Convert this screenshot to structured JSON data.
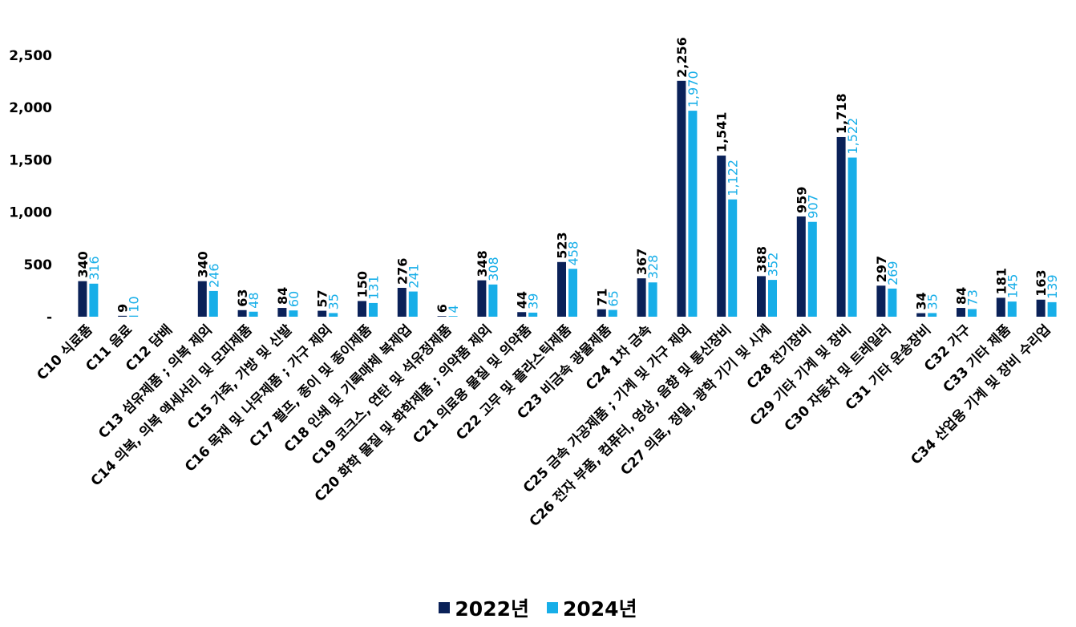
{
  "chart_data": {
    "type": "bar",
    "ylim": [
      0,
      2500
    ],
    "yticks": [
      {
        "value": 0,
        "label": "-"
      },
      {
        "value": 500,
        "label": "500"
      },
      {
        "value": 1000,
        "label": "1,000"
      },
      {
        "value": 1500,
        "label": "1,500"
      },
      {
        "value": 2000,
        "label": "2,000"
      },
      {
        "value": 2500,
        "label": "2,500"
      }
    ],
    "categories": [
      "C10 식료품",
      "C11 음료",
      "C12 담배",
      "C13 섬유제품 ; 의복 제외",
      "C14 의복, 의복 액세서리 및 모피제품",
      "C15 가죽, 가방 및 신발",
      "C16 목재 및 나무제품 ; 가구 제외",
      "C17 펄프, 종이 및 종이제품",
      "C18 인쇄 및 기록매체 복제업",
      "C19 코크스, 연탄 및 석유정제품",
      "C20 화학 물질 및 화학제품 ; 의약품 제외",
      "C21 의료용 물질 및 의약품",
      "C22 고무 및 플라스틱제품",
      "C23 비금속 광물제품",
      "C24 1차 금속",
      "C25 금속 가공제품 ; 기계 및 가구 제외",
      "C26 전자 부품, 컴퓨터, 영상, 음향 및 통신장비",
      "C27 의료, 정밀, 광학 기기 및 시계",
      "C28 전기장비",
      "C29 기타 기계 및 장비",
      "C30 자동차 및 트레일러",
      "C31 기타 운송장비",
      "C32 가구",
      "C33 기타 제품",
      "C34 산업용 기계 및 장비 수리업"
    ],
    "series": [
      {
        "name": "2022년",
        "color": "#0a2158",
        "values": [
          340,
          9,
          null,
          340,
          63,
          84,
          57,
          150,
          276,
          6,
          348,
          44,
          523,
          71,
          367,
          2256,
          1541,
          388,
          959,
          1718,
          297,
          34,
          84,
          181,
          163
        ],
        "labels": [
          "340",
          "9",
          "",
          "340",
          "63",
          "84",
          "57",
          "150",
          "276",
          "6",
          "348",
          "44",
          "523",
          "71",
          "367",
          "2,256",
          "1,541",
          "388",
          "959",
          "1,718",
          "297",
          "34",
          "84",
          "181",
          "163"
        ]
      },
      {
        "name": "2024년",
        "color": "#17aee8",
        "values": [
          316,
          10,
          null,
          246,
          48,
          60,
          35,
          131,
          241,
          4,
          308,
          39,
          458,
          65,
          328,
          1970,
          1122,
          352,
          907,
          1522,
          269,
          35,
          73,
          145,
          139
        ],
        "labels": [
          "316",
          "10",
          "",
          "246",
          "48",
          "60",
          "35",
          "131",
          "241",
          "4",
          "308",
          "39",
          "458",
          "65",
          "328",
          "1,970",
          "1,122",
          "352",
          "907",
          "1,522",
          "269",
          "35",
          "73",
          "145",
          "139"
        ]
      }
    ]
  },
  "legend": {
    "a": {
      "label": "2022년"
    },
    "b": {
      "label": "2024년"
    }
  }
}
